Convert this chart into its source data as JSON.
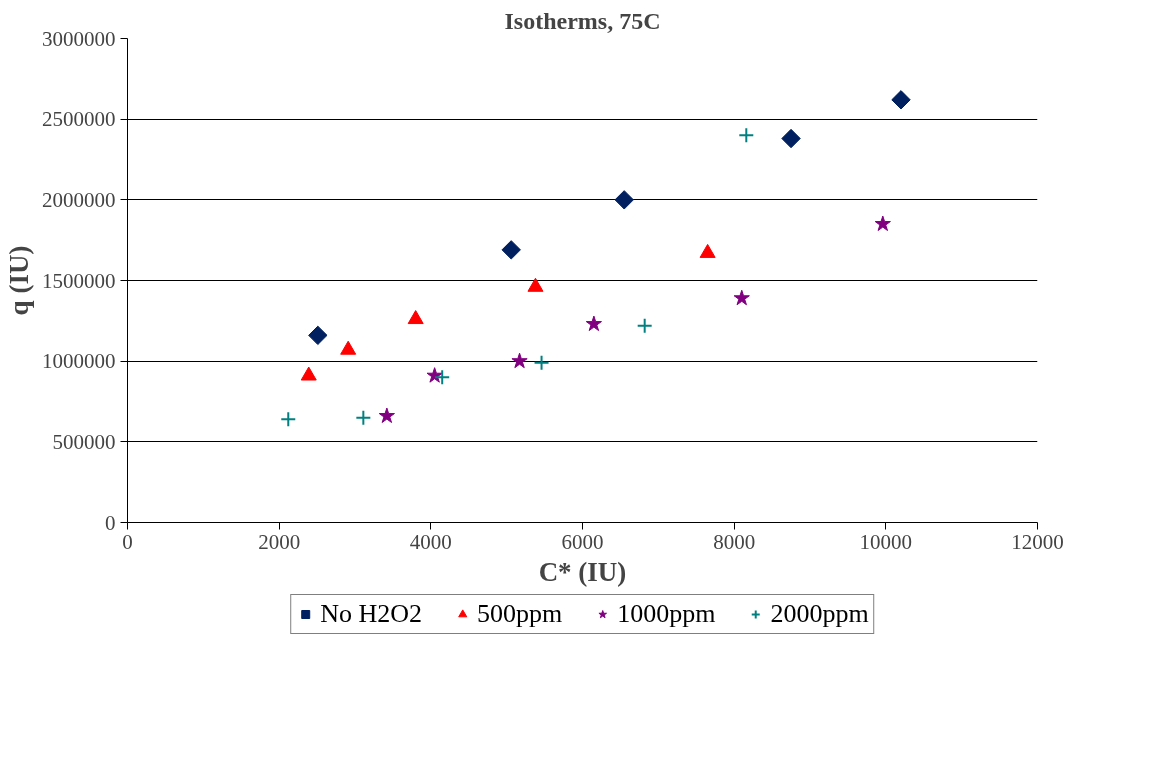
{
  "chart_data": {
    "type": "scatter",
    "title": "Isotherms, 75C",
    "xlabel": "C* (IU)",
    "ylabel": "q (IU)",
    "xlim": [
      0,
      12000
    ],
    "xticks": [
      0,
      2000,
      4000,
      6000,
      8000,
      10000,
      12000
    ],
    "ylim": [
      0,
      3000000
    ],
    "yticks": [
      0,
      500000,
      1000000,
      1500000,
      2000000,
      2500000,
      3000000
    ],
    "grid": "y",
    "legend": "bottom",
    "series": [
      {
        "name": "No H2O2",
        "color": "#002060",
        "marker": "diamond",
        "x": [
          2510,
          5060,
          6550,
          8750,
          10200
        ],
        "values": [
          1160000,
          1690000,
          2000000,
          2380000,
          2620000
        ]
      },
      {
        "name": "500ppm",
        "color": "#ff0000",
        "marker": "triangle",
        "x": [
          2390,
          2910,
          3800,
          5380,
          7650
        ],
        "values": [
          910000,
          1070000,
          1260000,
          1460000,
          1670000
        ]
      },
      {
        "name": "1000ppm",
        "color": "#800080",
        "marker": "star",
        "x": [
          3420,
          4050,
          5170,
          6150,
          8100,
          9960
        ],
        "values": [
          660000,
          910000,
          1000000,
          1230000,
          1390000,
          1850000
        ]
      },
      {
        "name": "2000ppm",
        "color": "#008080",
        "marker": "cross",
        "x": [
          2120,
          3110,
          4150,
          5460,
          6820,
          8160
        ],
        "values": [
          640000,
          650000,
          900000,
          990000,
          1220000,
          2400000
        ]
      }
    ]
  }
}
